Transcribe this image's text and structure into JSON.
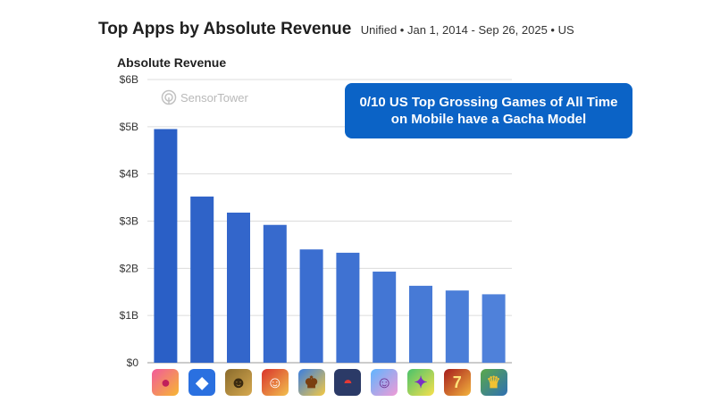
{
  "header": {
    "title": "Top Apps by Absolute Revenue",
    "subtitle": "Unified • Jan 1, 2014 - Sep 26, 2025 • US"
  },
  "watermark": "SensorTower",
  "callout": "0/10 US Top Grossing Games of All Time\non Mobile have a Gacha Model",
  "chart_data": {
    "type": "bar",
    "title": "Absolute Revenue",
    "y_ticks": [
      "$0",
      "$1B",
      "$2B",
      "$3B",
      "$4B",
      "$5B",
      "$6B"
    ],
    "ylim": [
      0,
      6000000000
    ],
    "grid": true,
    "bar_color": "#2f66cc",
    "values": [
      4950000000,
      3520000000,
      3180000000,
      2920000000,
      2400000000,
      2330000000,
      1930000000,
      1630000000,
      1530000000,
      1450000000
    ],
    "category_icons": [
      "candy-crush-icon",
      "roblox-icon",
      "clash-of-clans-icon",
      "monopoly-go-icon",
      "royal-match-icon",
      "pokemon-go-icon",
      "coin-master-icon",
      "toon-blast-icon",
      "slotomania-icon",
      "clash-royale-icon"
    ]
  }
}
